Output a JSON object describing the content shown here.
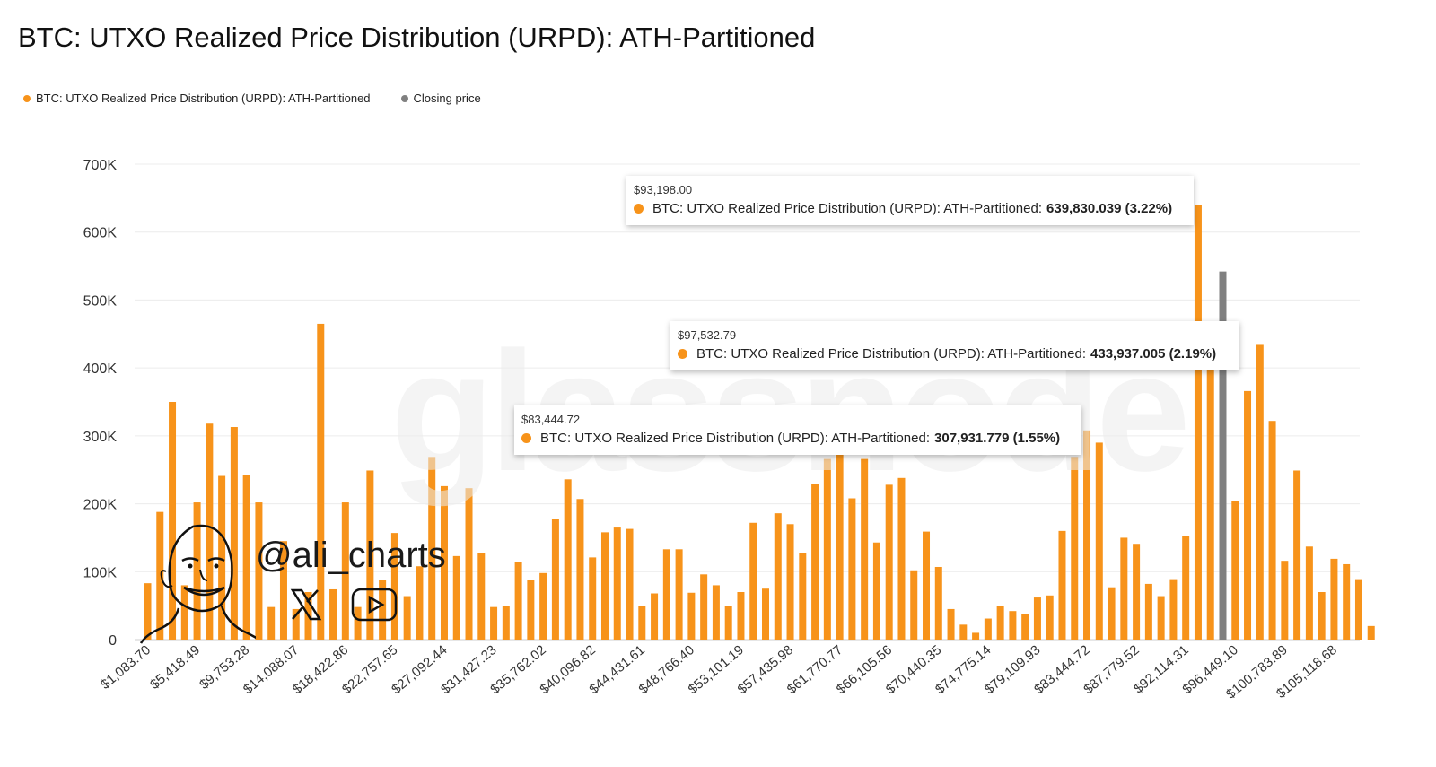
{
  "page": {
    "title": "BTC: UTXO Realized Price Distribution (URPD): ATH-Partitioned",
    "watermark_text": "glassnode",
    "creator_handle": "@ali_charts"
  },
  "legend": {
    "items": [
      {
        "label": "BTC: UTXO Realized Price Distribution (URPD): ATH-Partitioned",
        "color": "#f7931a"
      },
      {
        "label": "Closing price",
        "color": "#808080"
      }
    ]
  },
  "tooltips": [
    {
      "price": "$93,198.00",
      "label": "BTC: UTXO Realized Price Distribution (URPD): ATH-Partitioned:",
      "value": "639,830.039 (3.22%)"
    },
    {
      "price": "$97,532.79",
      "label": "BTC: UTXO Realized Price Distribution (URPD): ATH-Partitioned:",
      "value": "433,937.005 (2.19%)"
    },
    {
      "price": "$83,444.72",
      "label": "BTC: UTXO Realized Price Distribution (URPD): ATH-Partitioned:",
      "value": "307,931.779 (1.55%)"
    }
  ],
  "chart_data": {
    "type": "bar",
    "ylim": [
      0,
      700000
    ],
    "yticks": [
      0,
      100000,
      200000,
      300000,
      400000,
      500000,
      600000,
      700000
    ],
    "ytick_labels": [
      "0",
      "100K",
      "200K",
      "300K",
      "400K",
      "500K",
      "600K",
      "700K"
    ],
    "xtick_labels": [
      "$1,083.70",
      "$5,418.49",
      "$9,753.28",
      "$14,088.07",
      "$18,422.86",
      "$22,757.65",
      "$27,092.44",
      "$31,427.23",
      "$35,762.02",
      "$40,096.82",
      "$44,431.61",
      "$48,766.40",
      "$53,101.19",
      "$57,435.98",
      "$61,770.77",
      "$66,105.56",
      "$70,440.35",
      "$74,775.14",
      "$79,109.93",
      "$83,444.72",
      "$87,779.52",
      "$92,114.31",
      "$96,449.10",
      "$100,783.89",
      "$105,118.68"
    ],
    "grid": true,
    "legend_position": "top-left",
    "colors": {
      "urpd": "#f7931a",
      "closing_price": "#808080"
    },
    "closing_price_bin": 87,
    "series": [
      {
        "name": "BTC: UTXO Realized Price Distribution (URPD): ATH-Partitioned",
        "values": [
          83000,
          188000,
          350000,
          80000,
          202000,
          318000,
          241000,
          313000,
          242000,
          202000,
          48000,
          145000,
          45000,
          70000,
          465000,
          74000,
          202000,
          48000,
          249000,
          88000,
          157000,
          64000,
          108000,
          269000,
          226000,
          123000,
          223000,
          127000,
          48000,
          50000,
          114000,
          88000,
          98000,
          178000,
          236000,
          207000,
          121000,
          158000,
          165000,
          163000,
          49000,
          68000,
          133000,
          133000,
          69000,
          96000,
          80000,
          49000,
          70000,
          172000,
          75000,
          186000,
          170000,
          128000,
          229000,
          266000,
          278000,
          208000,
          266000,
          143000,
          228000,
          238000,
          102000,
          159000,
          107000,
          45000,
          22000,
          10000,
          31000,
          49000,
          42000,
          38000,
          62000,
          65000,
          160000,
          269000,
          308000,
          290000,
          77000,
          150000,
          141000,
          82000,
          64000,
          89000,
          153000,
          639830,
          425000,
          542000,
          204000,
          366000,
          433937,
          322000,
          116000,
          249000,
          137000,
          70000,
          119000,
          111000,
          89000,
          20000
        ]
      }
    ]
  }
}
